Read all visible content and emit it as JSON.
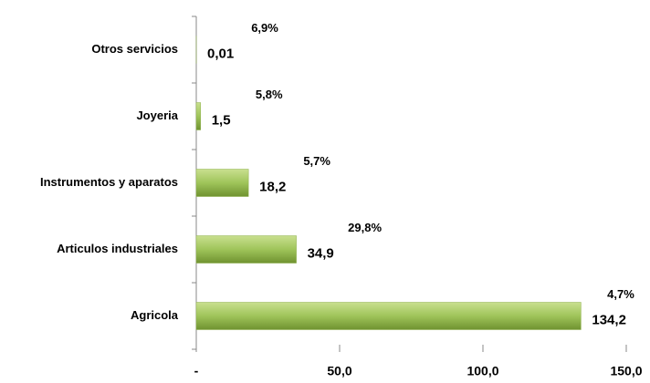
{
  "chart_data": {
    "type": "hbar",
    "categories": [
      "Otros servicios",
      "Joyeria",
      "Instrumentos y aparatos",
      "Articulos industriales",
      "Agricola"
    ],
    "values": [
      0.01,
      1.5,
      18.2,
      34.9,
      134.2
    ],
    "value_labels": [
      "0,01",
      "1,5",
      "18,2",
      "34,9",
      "134,2"
    ],
    "annotations": [
      "6,9%",
      "5,8%",
      "5,7%",
      "29,8%",
      "4,7%"
    ],
    "color": "#8db04a",
    "xlim": [
      0,
      150
    ],
    "xticks": [
      {
        "value": 0,
        "label": "-"
      },
      {
        "value": 50,
        "label": "50,0"
      },
      {
        "value": 100,
        "label": "100,0"
      },
      {
        "value": 150,
        "label": "150,0"
      }
    ]
  }
}
